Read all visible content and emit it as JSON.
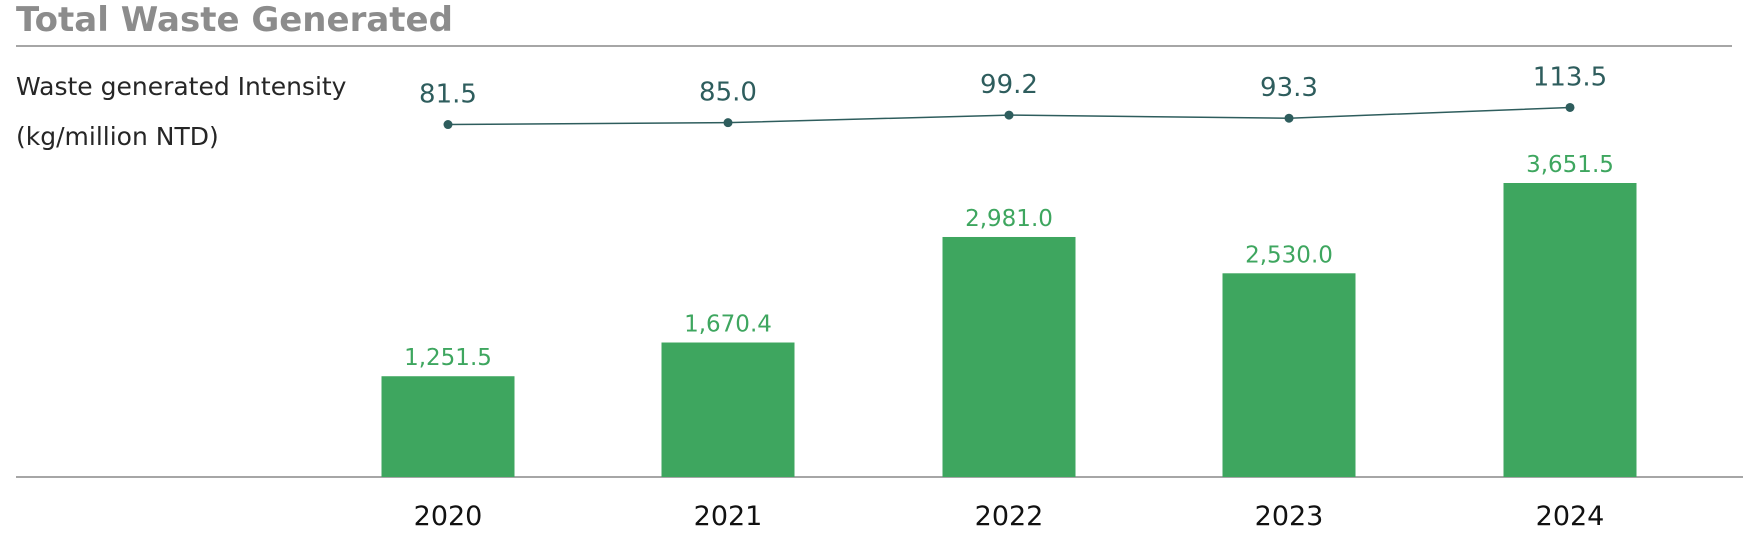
{
  "title": "Total Waste Generated",
  "intensity_label_line1": "Waste generated Intensity",
  "intensity_label_line2": "(kg/million NTD)",
  "colors": {
    "bar": "#3ea65f",
    "bar_label": "#3ea65f",
    "line": "#2e5d5d",
    "axis": "#a6a6a6",
    "title": "#8c8c8c"
  },
  "chart_data": [
    {
      "type": "line",
      "series": [
        {
          "name": "Waste generated Intensity (kg/million NTD)",
          "values": [
            81.5,
            85.0,
            99.2,
            93.3,
            113.5
          ],
          "labels": [
            "81.5",
            "85.0",
            "99.2",
            "93.3",
            "113.5"
          ]
        }
      ],
      "categories": [
        "2020",
        "2021",
        "2022",
        "2023",
        "2024"
      ]
    },
    {
      "type": "bar",
      "categories": [
        "2020",
        "2021",
        "2022",
        "2023",
        "2024"
      ],
      "values": [
        1251.5,
        1670.4,
        2981.0,
        2530.0,
        3651.5
      ],
      "labels": [
        "1,251.5",
        "1,670.4",
        "2,981.0",
        "2,530.0",
        "3,651.5"
      ],
      "ylim": [
        0,
        3651.5
      ]
    }
  ]
}
